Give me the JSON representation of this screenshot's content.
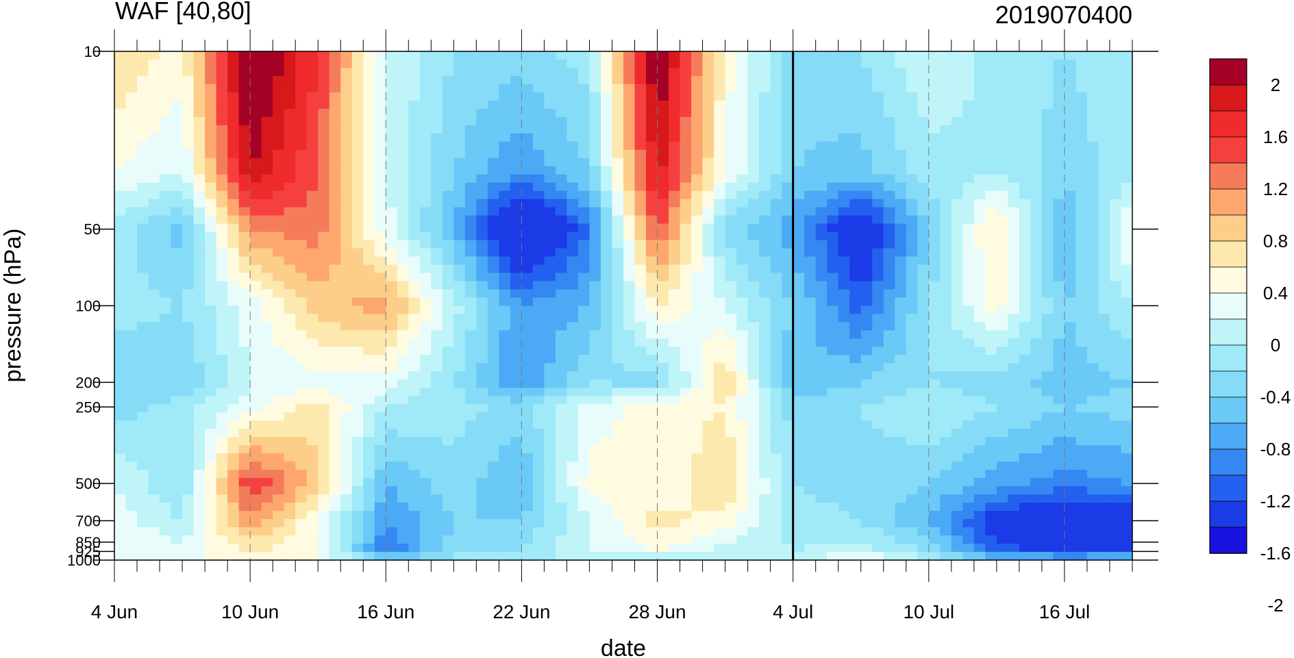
{
  "chart_data": {
    "type": "heatmap",
    "title": "WAF [40,80]",
    "subtitle": "2019070400",
    "xlabel": "date",
    "ylabel": "pressure (hPa)",
    "x_tick_labels": [
      "4 Jun",
      "10 Jun",
      "16 Jun",
      "22 Jun",
      "28 Jun",
      "4 Jul",
      "10 Jul",
      "16 Jul"
    ],
    "x_range_days": [
      0,
      45
    ],
    "x_major_tick_days": [
      0,
      6,
      12,
      18,
      24,
      30,
      36,
      42
    ],
    "pressure_levels": [
      10,
      50,
      100,
      200,
      250,
      500,
      700,
      850,
      925,
      1000
    ],
    "y_axis": "log pressure, inverted",
    "ylim": [
      1000,
      10
    ],
    "forecast_start_day": 30,
    "colorbar": {
      "labels": [
        "2",
        "1.6",
        "1.2",
        "0.8",
        "0.4",
        "0",
        "-0.4",
        "-0.8",
        "-1.2",
        "-1.6",
        "-2"
      ],
      "colors": [
        "#a50026",
        "#d7191c",
        "#ef2b2c",
        "#f64040",
        "#f57c5a",
        "#fda76f",
        "#fdcd8a",
        "#fde9ae",
        "#fefbe0",
        "#e8fcfc",
        "#bff4f8",
        "#9fe9f8",
        "#86dcf7",
        "#6ac9f6",
        "#4ba9f5",
        "#3587f2",
        "#2460ef",
        "#1b3be7",
        "#1712dd"
      ]
    },
    "field": {
      "days": [
        0,
        3,
        6,
        9,
        12,
        15,
        18,
        21,
        24,
        27,
        30,
        33,
        36,
        39,
        42,
        45
      ],
      "levels": [
        10,
        30,
        50,
        100,
        200,
        250,
        500,
        700,
        925,
        1000
      ],
      "values": [
        [
          0.6,
          0.3,
          2.2,
          1.4,
          0.0,
          -0.4,
          -0.5,
          -0.3,
          2.1,
          0.3,
          -0.5,
          -0.4,
          0.0,
          -0.3,
          -0.4,
          -0.3
        ],
        [
          0.2,
          0.0,
          1.8,
          1.2,
          0.0,
          -0.6,
          -1.0,
          -0.6,
          1.7,
          0.2,
          -0.6,
          -0.7,
          -0.3,
          -0.2,
          -0.5,
          -0.3
        ],
        [
          -0.3,
          -0.7,
          1.0,
          1.1,
          0.1,
          -0.8,
          -2.1,
          -1.2,
          1.3,
          -0.5,
          -0.9,
          -1.8,
          -0.6,
          0.5,
          -0.9,
          0.3
        ],
        [
          -0.3,
          -0.4,
          0.1,
          0.7,
          0.9,
          -0.1,
          -1.0,
          -0.8,
          0.4,
          0.0,
          -0.6,
          -1.3,
          -0.4,
          0.3,
          -0.6,
          -0.2
        ],
        [
          -0.6,
          -0.6,
          0.0,
          0.1,
          0.1,
          -0.4,
          -1.0,
          -0.4,
          -0.5,
          0.6,
          -0.8,
          -0.6,
          -0.4,
          -0.5,
          -0.7,
          -0.6
        ],
        [
          -0.5,
          -0.3,
          0.1,
          0.5,
          -0.2,
          -0.3,
          -0.5,
          0.1,
          0.3,
          0.4,
          -0.5,
          -0.4,
          -0.2,
          -0.4,
          -0.6,
          -0.5
        ],
        [
          0.0,
          -0.4,
          1.4,
          0.7,
          -0.8,
          -0.5,
          -0.8,
          0.3,
          0.2,
          0.6,
          -0.4,
          -0.5,
          -0.6,
          -0.9,
          -1.1,
          -1.0
        ],
        [
          0.1,
          -0.2,
          1.0,
          0.2,
          -1.0,
          -0.6,
          -0.6,
          0.0,
          0.5,
          0.3,
          -0.3,
          -0.4,
          -0.8,
          -1.6,
          -1.8,
          -1.7
        ],
        [
          0.2,
          0.1,
          0.4,
          0.2,
          -1.2,
          -0.5,
          -0.4,
          0.0,
          0.2,
          -0.1,
          -0.2,
          -0.1,
          -0.4,
          -1.3,
          -1.5,
          -1.4
        ],
        [
          0.1,
          0.1,
          0.3,
          0.3,
          -0.4,
          -0.3,
          -0.3,
          0.0,
          -0.3,
          -0.1,
          -0.1,
          0.3,
          -0.2,
          -0.5,
          -0.6,
          -0.5
        ]
      ]
    }
  }
}
